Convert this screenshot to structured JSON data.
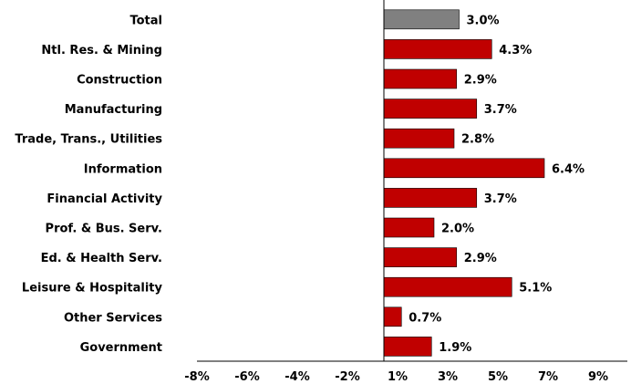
{
  "chart_data": {
    "type": "bar",
    "orientation": "horizontal",
    "categories": [
      "Total",
      "Ntl. Res. & Mining",
      "Construction",
      "Manufacturing",
      "Trade, Trans., Utilities",
      "Information",
      "Financial Activity",
      "Prof. & Bus. Serv.",
      "Ed. & Health Serv.",
      "Leisure & Hospitality",
      "Other Services",
      "Government"
    ],
    "values": [
      3.0,
      4.3,
      2.9,
      3.7,
      2.8,
      6.4,
      3.7,
      2.0,
      2.9,
      5.1,
      0.7,
      1.9
    ],
    "value_labels": [
      "3.0%",
      "4.3%",
      "2.9%",
      "3.7%",
      "2.8%",
      "6.4%",
      "3.7%",
      "2.0%",
      "2.9%",
      "5.1%",
      "0.7%",
      "1.9%"
    ],
    "bar_colors": [
      "#808080",
      "#c00000",
      "#c00000",
      "#c00000",
      "#c00000",
      "#c00000",
      "#c00000",
      "#c00000",
      "#c00000",
      "#c00000",
      "#c00000",
      "#c00000"
    ],
    "xlim": [
      -8,
      9
    ],
    "x_ticks": [
      "-8%",
      "-6%",
      "-4%",
      "-2%",
      "1%",
      "3%",
      "5%",
      "7%",
      "9%"
    ],
    "title": "",
    "xlabel": "",
    "ylabel": "",
    "grid": false,
    "legend": "none"
  }
}
